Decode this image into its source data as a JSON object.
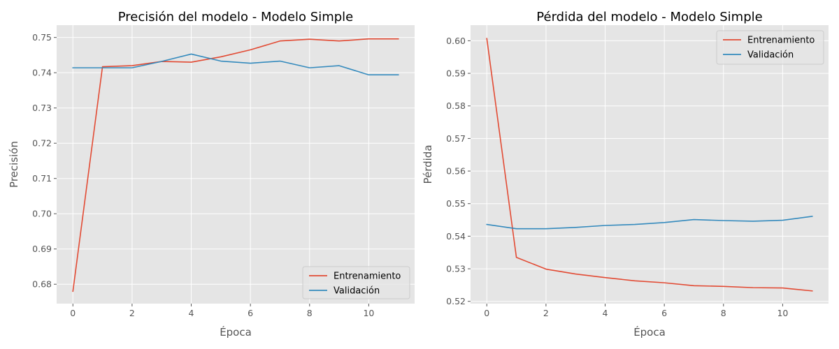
{
  "chart_data": [
    {
      "type": "line",
      "title": "Precisión del modelo - Modelo Simple",
      "xlabel": "Época",
      "ylabel": "Precisión",
      "xlim": [
        -0.55,
        11.55
      ],
      "ylim": [
        0.6745,
        0.7535
      ],
      "xticks": [
        0,
        2,
        4,
        6,
        8,
        10
      ],
      "xtick_labels": [
        "0",
        "2",
        "4",
        "6",
        "8",
        "10"
      ],
      "yticks": [
        0.68,
        0.69,
        0.7,
        0.71,
        0.72,
        0.73,
        0.74,
        0.75
      ],
      "ytick_labels": [
        "0.68",
        "0.69",
        "0.70",
        "0.71",
        "0.72",
        "0.73",
        "0.74",
        "0.75"
      ],
      "grid": true,
      "legend_position": "lower-right",
      "x": [
        0,
        1,
        2,
        3,
        4,
        5,
        6,
        7,
        8,
        9,
        10,
        11
      ],
      "series": [
        {
          "name": "Entrenamiento",
          "color": "#E24A33",
          "values": [
            0.678,
            0.7417,
            0.742,
            0.7432,
            0.743,
            0.7445,
            0.7465,
            0.749,
            0.7495,
            0.749,
            0.7496,
            0.7496
          ]
        },
        {
          "name": "Validación",
          "color": "#348ABD",
          "values": [
            0.7414,
            0.7414,
            0.7414,
            0.7432,
            0.7453,
            0.7433,
            0.7427,
            0.7433,
            0.7414,
            0.742,
            0.7394,
            0.7394
          ]
        }
      ]
    },
    {
      "type": "line",
      "title": "Pérdida del modelo - Modelo Simple",
      "xlabel": "Época",
      "ylabel": "Pérdida",
      "xlim": [
        -0.55,
        11.55
      ],
      "ylim": [
        0.5193,
        0.6048
      ],
      "xticks": [
        0,
        2,
        4,
        6,
        8,
        10
      ],
      "xtick_labels": [
        "0",
        "2",
        "4",
        "6",
        "8",
        "10"
      ],
      "yticks": [
        0.52,
        0.53,
        0.54,
        0.55,
        0.56,
        0.57,
        0.58,
        0.59,
        0.6
      ],
      "ytick_labels": [
        "0.52",
        "0.53",
        "0.54",
        "0.55",
        "0.56",
        "0.57",
        "0.58",
        "0.59",
        "0.60"
      ],
      "grid": true,
      "legend_position": "top-right",
      "x": [
        0,
        1,
        2,
        3,
        4,
        5,
        6,
        7,
        8,
        9,
        10,
        11
      ],
      "series": [
        {
          "name": "Entrenamiento",
          "color": "#E24A33",
          "values": [
            0.6007,
            0.5335,
            0.5299,
            0.5284,
            0.5273,
            0.5263,
            0.5257,
            0.5248,
            0.5246,
            0.5242,
            0.5241,
            0.5232
          ]
        },
        {
          "name": "Validación",
          "color": "#348ABD",
          "values": [
            0.5436,
            0.5423,
            0.5423,
            0.5427,
            0.5433,
            0.5436,
            0.5442,
            0.5451,
            0.5448,
            0.5446,
            0.5449,
            0.5461
          ]
        }
      ]
    }
  ],
  "style": {
    "plot_background": "#E5E5E5",
    "grid_color": "#FFFFFF",
    "legend_border": "#CCCCCC",
    "legend_background": "#E5E5E5"
  }
}
